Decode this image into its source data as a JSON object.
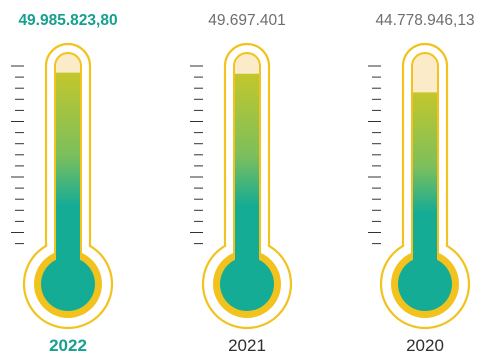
{
  "colors": {
    "highlight": "#15a08f",
    "muted": "#6e6e6e",
    "dark": "#2f2f2f",
    "outline": "#f2c21f",
    "tube_empty": "#fcebc9",
    "fill_top": "#c3c72b",
    "fill_mid": "#7cbf5c",
    "fill_bottom": "#14ac95",
    "tick": "#333333"
  },
  "chart_data": {
    "type": "bar",
    "variant": "thermometer",
    "categories": [
      "2022",
      "2021",
      "2020"
    ],
    "values": [
      49985823.8,
      49697401,
      44778946.13
    ],
    "value_labels": [
      "49.985.823,80",
      "49.697.401",
      "44.778.946,13"
    ],
    "highlighted": "2022",
    "ylim": [
      0,
      52000000
    ],
    "title": "",
    "xlabel": "",
    "ylabel": ""
  }
}
